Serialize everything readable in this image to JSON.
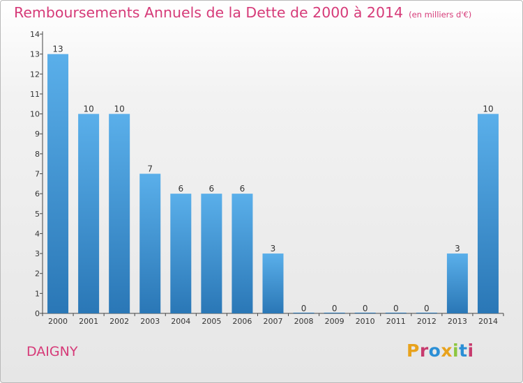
{
  "header": {
    "title": "Remboursements Annuels de la Dette de 2000 à 2014",
    "unit_note": "(en milliers d'€)"
  },
  "footer": {
    "commune": "DAIGNY",
    "logo_text": "Proxiti"
  },
  "colors": {
    "title": "#d63a78",
    "bar_top": "#5aafea",
    "bar_bottom": "#2a77b6",
    "axis": "#444444",
    "logo_letters": [
      "#e8a21c",
      "#c73b6e",
      "#2b8fd6",
      "#e8a21c",
      "#8cc63f",
      "#2b8fd6",
      "#c73b6e"
    ]
  },
  "chart_data": {
    "type": "bar",
    "title": "Remboursements Annuels de la Dette de 2000 à 2014",
    "subtitle": "(en milliers d'€)",
    "categories": [
      "2000",
      "2001",
      "2002",
      "2003",
      "2004",
      "2005",
      "2006",
      "2007",
      "2008",
      "2009",
      "2010",
      "2011",
      "2012",
      "2013",
      "2014"
    ],
    "values": [
      13,
      10,
      10,
      7,
      6,
      6,
      6,
      3,
      0,
      0,
      0,
      0,
      0,
      3,
      10
    ],
    "data_labels": [
      "13",
      "10",
      "10",
      "7",
      "6",
      "6",
      "6",
      "3",
      "0",
      "0",
      "0",
      "0",
      "0",
      "3",
      "10"
    ],
    "y_ticks": [
      0,
      1,
      2,
      3,
      4,
      5,
      6,
      7,
      8,
      9,
      10,
      11,
      12,
      13,
      14
    ],
    "y_tick_labels": [
      "0",
      "1",
      "2",
      "3",
      "4",
      "5",
      "6",
      "7",
      "8",
      "9",
      "10",
      "11",
      "12",
      "13",
      "14"
    ],
    "ylim": [
      0,
      14
    ],
    "xlabel": "",
    "ylabel": "",
    "grid": false,
    "legend": "none"
  }
}
